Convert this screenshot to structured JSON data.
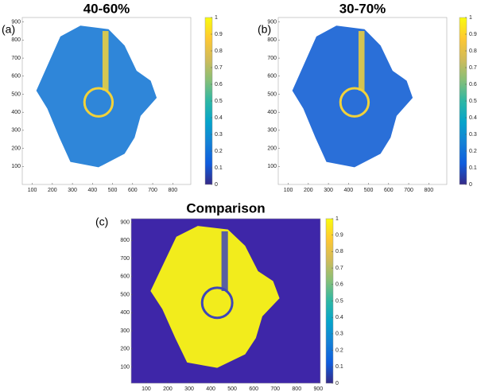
{
  "chart_data": [
    {
      "type": "heatmap",
      "title": "40-60%",
      "panel_label": "(a)",
      "xlim": [
        50,
        890
      ],
      "xticks": [
        100,
        200,
        300,
        400,
        500,
        600,
        700,
        800
      ],
      "ylim": [
        0,
        925
      ],
      "yticks": [
        100,
        200,
        300,
        400,
        500,
        600,
        700,
        800,
        900
      ],
      "colorbar": {
        "lim": [
          0,
          1
        ],
        "ticks": [
          0,
          0.1,
          0.2,
          0.3,
          0.4,
          0.5,
          0.6,
          0.7,
          0.8,
          0.9,
          1
        ]
      }
    },
    {
      "type": "heatmap",
      "title": "30-70%",
      "panel_label": "(b)",
      "xlim": [
        50,
        890
      ],
      "xticks": [
        100,
        200,
        300,
        400,
        500,
        600,
        700,
        800
      ],
      "ylim": [
        0,
        925
      ],
      "yticks": [
        100,
        200,
        300,
        400,
        500,
        600,
        700,
        800,
        900
      ],
      "colorbar": {
        "lim": [
          0,
          1
        ],
        "ticks": [
          0,
          0.1,
          0.2,
          0.3,
          0.4,
          0.5,
          0.6,
          0.7,
          0.8,
          0.9,
          1
        ]
      }
    },
    {
      "type": "heatmap",
      "title": "Comparison",
      "panel_label": "(c)",
      "xlim": [
        30,
        910
      ],
      "xticks": [
        100,
        200,
        300,
        400,
        500,
        600,
        700,
        800,
        900
      ],
      "ylim": [
        10,
        920
      ],
      "yticks": [
        100,
        200,
        300,
        400,
        500,
        600,
        700,
        800,
        900
      ],
      "colorbar": {
        "lim": [
          0,
          1
        ],
        "ticks": [
          0,
          0.1,
          0.2,
          0.3,
          0.4,
          0.5,
          0.6,
          0.7,
          0.8,
          0.9,
          1
        ]
      }
    }
  ]
}
